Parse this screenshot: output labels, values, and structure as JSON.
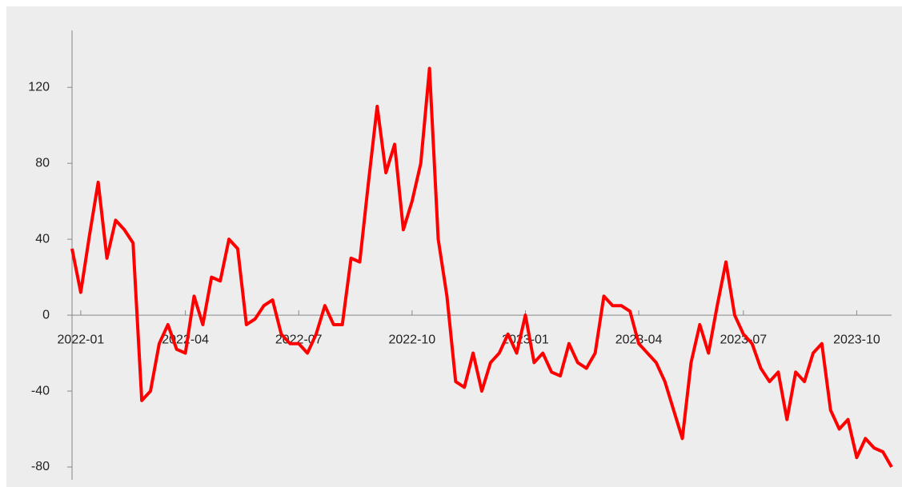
{
  "chart_data": {
    "type": "line",
    "categories": [
      null,
      "2022-01",
      null,
      null,
      null,
      null,
      null,
      null,
      null,
      null,
      null,
      null,
      null,
      "2022-04",
      null,
      null,
      null,
      null,
      null,
      null,
      null,
      null,
      null,
      null,
      null,
      null,
      "2022-07",
      null,
      null,
      null,
      null,
      null,
      null,
      null,
      null,
      null,
      null,
      null,
      null,
      "2022-10",
      null,
      null,
      null,
      null,
      null,
      null,
      null,
      null,
      null,
      null,
      null,
      null,
      "2023-01",
      null,
      null,
      null,
      null,
      null,
      null,
      null,
      null,
      null,
      null,
      null,
      null,
      "2023-04",
      null,
      null,
      null,
      null,
      null,
      null,
      null,
      null,
      null,
      null,
      null,
      "2023-07",
      null,
      null,
      null,
      null,
      null,
      null,
      null,
      null,
      null,
      null,
      null,
      null,
      "2023-10",
      null,
      null,
      null,
      null
    ],
    "values": [
      35,
      12,
      42,
      70,
      30,
      50,
      45,
      38,
      -45,
      -40,
      -15,
      -5,
      -18,
      -20,
      10,
      -5,
      20,
      18,
      40,
      35,
      -5,
      -2,
      5,
      8,
      -10,
      -15,
      -15,
      -20,
      -10,
      5,
      -5,
      -5,
      30,
      28,
      70,
      110,
      75,
      90,
      45,
      60,
      80,
      130,
      40,
      10,
      -35,
      -38,
      -20,
      -40,
      -25,
      -20,
      -10,
      -20,
      0,
      -25,
      -20,
      -30,
      -32,
      -15,
      -25,
      -28,
      -20,
      10,
      5,
      5,
      2,
      -15,
      -20,
      -25,
      -35,
      -50,
      -65,
      -25,
      -5,
      -20,
      5,
      28,
      0,
      -10,
      -15,
      -28,
      -35,
      -30,
      -55,
      -30,
      -35,
      -20,
      -15,
      -50,
      -60,
      -55,
      -75,
      -65,
      -70,
      -72,
      -80
    ],
    "color": "#ff0000",
    "ylim": [
      -80,
      150
    ],
    "yticks": [
      -80,
      -40,
      0,
      40,
      80,
      120
    ],
    "grid": false
  }
}
